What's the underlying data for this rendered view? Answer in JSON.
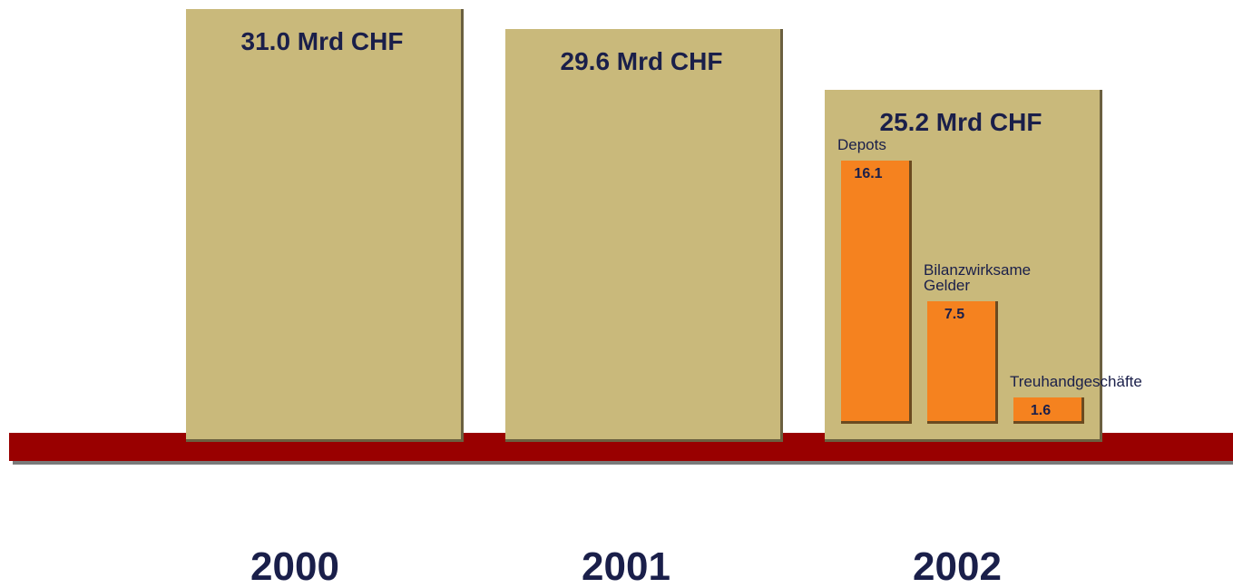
{
  "chart_data": [
    {
      "type": "bar",
      "categories": [
        "2000",
        "2001",
        "2002"
      ],
      "values": [
        31.0,
        29.6,
        25.2
      ],
      "value_labels": [
        "31.0 Mrd CHF",
        "29.6 Mrd CHF",
        "25.2 Mrd CHF"
      ],
      "color": "#c9b97b"
    },
    {
      "type": "bar",
      "categories": [
        "Depots",
        "Bilanzwirksame Gelder",
        "Treuhandgeschäfte"
      ],
      "values": [
        16.1,
        7.5,
        1.6
      ],
      "value_labels": [
        "16.1",
        "7.5",
        "1.6"
      ],
      "color": "#f5821f"
    }
  ]
}
